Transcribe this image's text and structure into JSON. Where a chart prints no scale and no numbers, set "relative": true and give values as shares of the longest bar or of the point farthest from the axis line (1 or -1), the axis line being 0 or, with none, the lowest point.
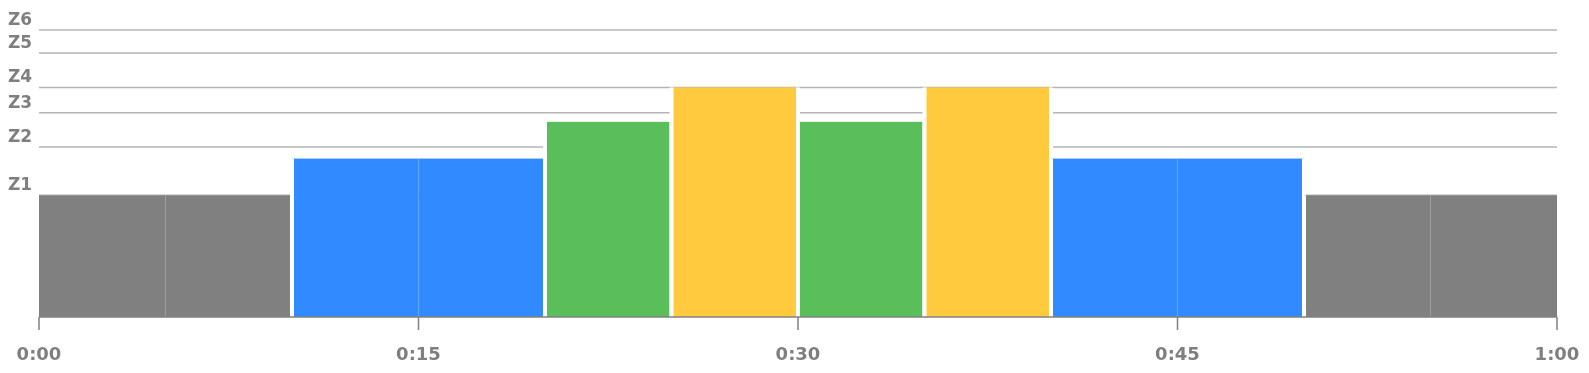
{
  "chart_data": {
    "type": "bar",
    "relative": true,
    "x": [
      2.5,
      7.5,
      12.5,
      17.5,
      22.5,
      27.5,
      32.5,
      37.5,
      42.5,
      47.5,
      52.5,
      57.5
    ],
    "values": [
      0.53,
      0.53,
      0.69,
      0.69,
      0.85,
      1,
      0.85,
      1,
      0.69,
      0.69,
      0.53,
      0.53
    ],
    "colors": [
      "#808080",
      "#808080",
      "#318aff",
      "#318aff",
      "#5abf5a",
      "#ffca3e",
      "#5abf5a",
      "#ffca3e",
      "#318aff",
      "#318aff",
      "#808080",
      "#808080"
    ],
    "xlim": [
      0,
      60
    ],
    "xticks": [
      {
        "value": 0,
        "label": "0:00"
      },
      {
        "value": 15,
        "label": "0:15"
      },
      {
        "value": 30,
        "label": "0:30"
      },
      {
        "value": 45,
        "label": "0:45"
      },
      {
        "value": 60,
        "label": "1:00"
      }
    ],
    "ref_lines": [
      {
        "axis": "y",
        "value": 0.53,
        "label": "Z1",
        "color": "#b5b5b5"
      },
      {
        "axis": "y",
        "value": 0.74,
        "label": "Z2",
        "color": "#b5b5b5"
      },
      {
        "axis": "y",
        "value": 0.89,
        "label": "Z3",
        "color": "#b5b5b5"
      },
      {
        "axis": "y",
        "value": 1,
        "label": "Z4",
        "color": "#b5b5b5"
      },
      {
        "axis": "y",
        "value": 1.15,
        "label": "Z5",
        "color": "#b5b5b5"
      },
      {
        "axis": "y",
        "value": 1.25,
        "label": "Z6",
        "color": "#b5b5b5"
      }
    ]
  }
}
